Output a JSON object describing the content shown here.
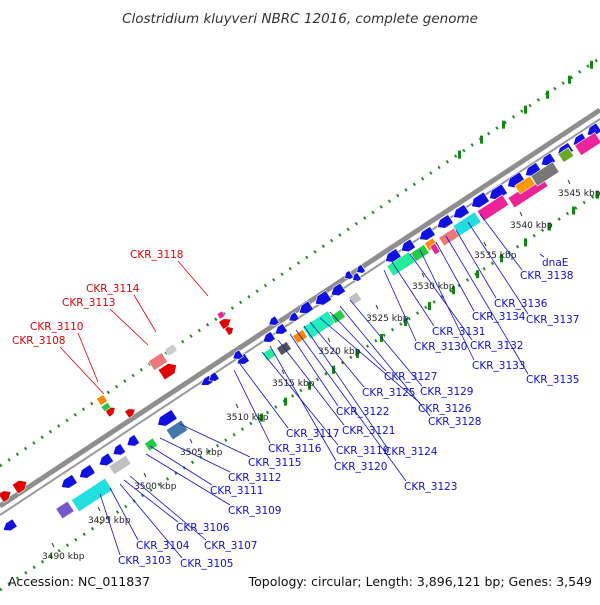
{
  "title": "Clostridium kluyveri NBRC 12016, complete genome",
  "footer": {
    "accession": "Accession: NC_011837",
    "info": "Topology: circular; Length: 3,896,121 bp; Genes: 3,549"
  },
  "ticks": [
    "3490 kbp",
    "3495 kbp",
    "3500 kbp",
    "3505 kbp",
    "3510 kbp",
    "3515 kbp",
    "3520 kbp",
    "3525 kbp",
    "3530 kbp",
    "3535 kbp",
    "3540 kbp",
    "3545 kbp"
  ],
  "labels_red": [
    "CKR_3118",
    "CKR_3114",
    "CKR_3113",
    "CKR_3110",
    "CKR_3108"
  ],
  "labels_blue": [
    "CKR_3103",
    "CKR_3104",
    "CKR_3105",
    "CKR_3106",
    "CKR_3107",
    "CKR_3109",
    "CKR_3111",
    "CKR_3112",
    "CKR_3115",
    "CKR_3116",
    "CKR_3117",
    "CKR_3119",
    "CKR_3120",
    "CKR_3121",
    "CKR_3122",
    "CKR_3123",
    "CKR_3124",
    "CKR_3125",
    "CKR_3126",
    "CKR_3127",
    "CKR_3128",
    "CKR_3129",
    "CKR_3130",
    "CKR_3131",
    "CKR_3132",
    "CKR_3133",
    "CKR_3134",
    "CKR_3135",
    "CKR_3136",
    "CKR_3137",
    "CKR_3138",
    "dnaE"
  ],
  "colors": {
    "backbone": "#8a8a8a",
    "forward_gene": "#e00000",
    "reverse_gene": "#1010e0",
    "gc_skew": "#118811",
    "label_red": "#e00000",
    "label_blue": "#1010d0"
  }
}
